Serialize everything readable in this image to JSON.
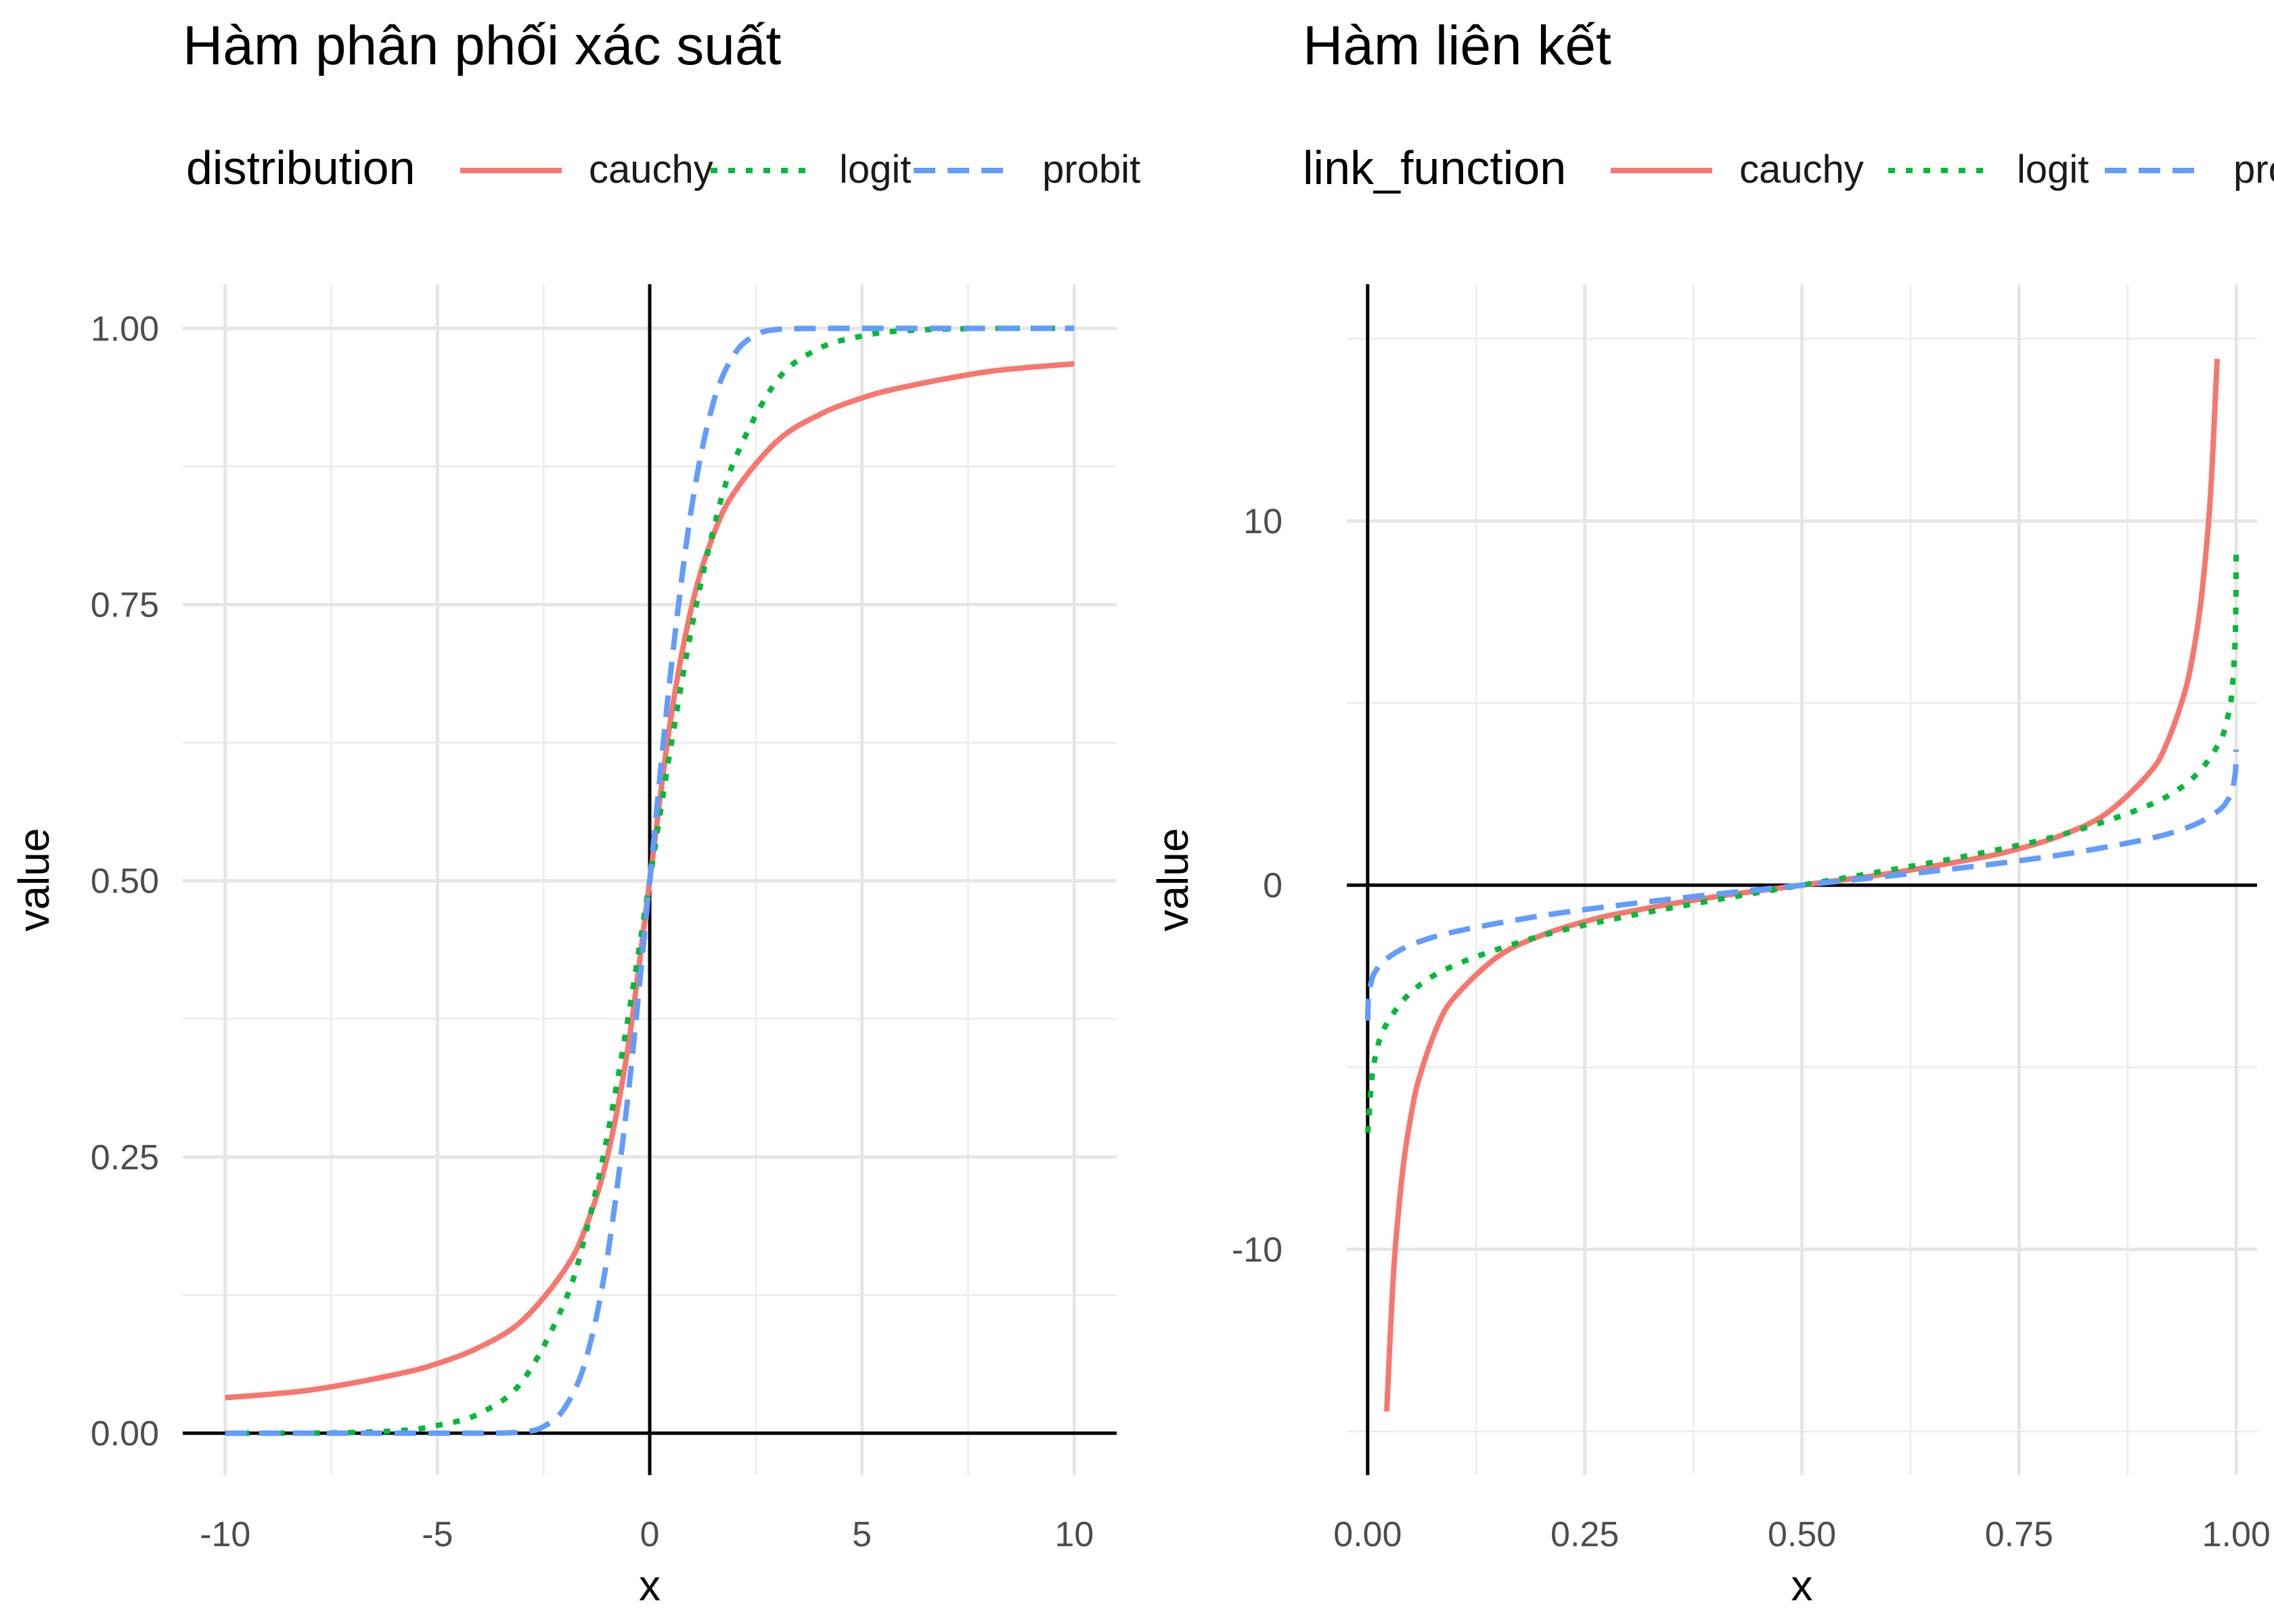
{
  "chart_data": [
    {
      "type": "line",
      "title": "Hàm phân phối xác suất",
      "xlabel": "x",
      "ylabel": "value",
      "xlim": [
        -11,
        11
      ],
      "ylim": [
        -0.038,
        1.04
      ],
      "x_ticks": [
        -10,
        -5,
        0,
        5,
        10
      ],
      "x_tick_labels": [
        "-10",
        "-5",
        "0",
        "5",
        "10"
      ],
      "y_ticks": [
        0,
        0.25,
        0.5,
        0.75,
        1
      ],
      "y_tick_labels": [
        "0.00",
        "0.25",
        "0.50",
        "0.75",
        "1.00"
      ],
      "grid": true,
      "reference_lines": {
        "x": 0,
        "y": 0
      },
      "legend": {
        "title": "distribution",
        "position": "top-left"
      },
      "series": [
        {
          "name": "cauchy",
          "color": "#F8766D",
          "linestyle": "solid",
          "x": [
            -10,
            -8,
            -6,
            -5,
            -4,
            -3,
            -2,
            -1.5,
            -1,
            -0.5,
            0,
            0.5,
            1,
            1.5,
            2,
            3,
            4,
            5,
            6,
            8,
            10
          ],
          "values": [
            0.032,
            0.039,
            0.053,
            0.063,
            0.078,
            0.102,
            0.148,
            0.187,
            0.25,
            0.352,
            0.5,
            0.648,
            0.75,
            0.813,
            0.852,
            0.898,
            0.922,
            0.937,
            0.947,
            0.961,
            0.968
          ]
        },
        {
          "name": "logit",
          "color": "#00BA38",
          "linestyle": "dotted",
          "x": [
            -10,
            -8,
            -6,
            -5,
            -4,
            -3,
            -2,
            -1.5,
            -1,
            -0.5,
            0,
            0.5,
            1,
            1.5,
            2,
            3,
            4,
            5,
            6,
            8,
            10
          ],
          "values": [
            0.0,
            0.0,
            0.002,
            0.007,
            0.018,
            0.047,
            0.119,
            0.182,
            0.269,
            0.378,
            0.5,
            0.622,
            0.731,
            0.818,
            0.881,
            0.953,
            0.982,
            0.993,
            0.998,
            1.0,
            1.0
          ]
        },
        {
          "name": "probit",
          "color": "#619CFF",
          "linestyle": "dashed",
          "x": [
            -10,
            -6,
            -4,
            -3,
            -2.5,
            -2,
            -1.5,
            -1,
            -0.5,
            0,
            0.5,
            1,
            1.5,
            2,
            2.5,
            3,
            4,
            6,
            10
          ],
          "values": [
            0.0,
            0.0,
            0.0,
            0.001,
            0.006,
            0.023,
            0.067,
            0.159,
            0.309,
            0.5,
            0.691,
            0.841,
            0.933,
            0.977,
            0.994,
            0.999,
            1.0,
            1.0,
            1.0
          ]
        }
      ]
    },
    {
      "type": "line",
      "title": "Hàm liên kết",
      "xlabel": "x",
      "ylabel": "value",
      "xlim": [
        -0.024,
        1.024
      ],
      "ylim": [
        -16.2,
        16.5
      ],
      "x_ticks": [
        0,
        0.25,
        0.5,
        0.75,
        1
      ],
      "x_tick_labels": [
        "0.00",
        "0.25",
        "0.50",
        "0.75",
        "1.00"
      ],
      "y_ticks": [
        -10,
        0,
        10
      ],
      "y_tick_labels": [
        "-10",
        "0",
        "10"
      ],
      "grid": true,
      "reference_lines": {
        "x": 0,
        "y": 0
      },
      "legend": {
        "title": "link_function",
        "position": "top-left"
      },
      "series": [
        {
          "name": "cauchy",
          "color": "#F8766D",
          "linestyle": "solid",
          "x": [
            0.022,
            0.03,
            0.04,
            0.05,
            0.06,
            0.08,
            0.1,
            0.15,
            0.2,
            0.25,
            0.3,
            0.4,
            0.5,
            0.6,
            0.7,
            0.75,
            0.8,
            0.85,
            0.9,
            0.92,
            0.94,
            0.95,
            0.96,
            0.97,
            0.978
          ],
          "values": [
            -14.45,
            -10.58,
            -7.92,
            -6.31,
            -5.24,
            -3.89,
            -3.08,
            -1.96,
            -1.38,
            -1.0,
            -0.73,
            -0.32,
            0,
            0.32,
            0.73,
            1.0,
            1.38,
            1.96,
            3.08,
            3.89,
            5.24,
            6.31,
            7.92,
            10.58,
            14.45
          ]
        },
        {
          "name": "logit",
          "color": "#00BA38",
          "linestyle": "dotted",
          "x": [
            0.0001,
            0.001,
            0.005,
            0.01,
            0.02,
            0.05,
            0.1,
            0.2,
            0.3,
            0.4,
            0.5,
            0.6,
            0.7,
            0.8,
            0.9,
            0.95,
            0.98,
            0.99,
            0.995,
            0.999,
            0.9999
          ],
          "values": [
            -6.8,
            -6.5,
            -5.29,
            -4.6,
            -3.89,
            -2.94,
            -2.2,
            -1.39,
            -0.85,
            -0.41,
            0,
            0.41,
            0.85,
            1.39,
            2.2,
            2.94,
            3.89,
            4.6,
            5.29,
            6.91,
            9.21
          ]
        },
        {
          "name": "probit",
          "color": "#619CFF",
          "linestyle": "dashed",
          "x": [
            0.0001,
            0.001,
            0.005,
            0.01,
            0.02,
            0.05,
            0.1,
            0.2,
            0.3,
            0.4,
            0.5,
            0.6,
            0.7,
            0.8,
            0.9,
            0.95,
            0.98,
            0.99,
            0.995,
            0.999,
            0.9999
          ],
          "values": [
            -3.72,
            -3.09,
            -2.58,
            -2.33,
            -2.05,
            -1.64,
            -1.28,
            -0.84,
            -0.52,
            -0.25,
            0,
            0.25,
            0.52,
            0.84,
            1.28,
            1.64,
            2.05,
            2.33,
            2.58,
            3.09,
            3.72
          ]
        }
      ]
    }
  ]
}
